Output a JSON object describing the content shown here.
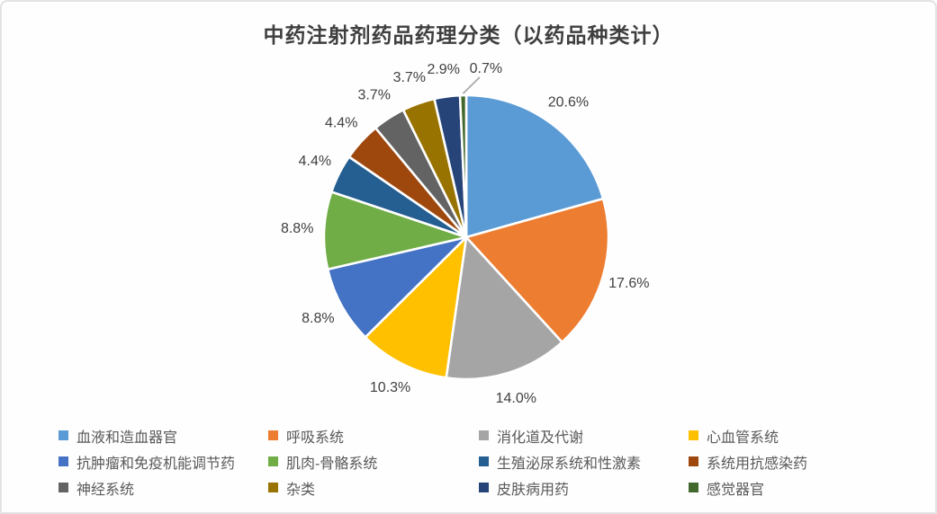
{
  "title": "中药注射剂药品药理分类（以药品种类计）",
  "chart_data": {
    "type": "pie",
    "title": "中药注射剂药品药理分类（以药品种类计）",
    "value_unit": "%",
    "start_angle_deg": 0,
    "direction": "clockwise",
    "legend_position": "bottom",
    "data_labels": "percent-outside",
    "slices": [
      {
        "label": "血液和造血器官",
        "value": 20.6,
        "display": "20.6%",
        "color": "#5B9BD5"
      },
      {
        "label": "呼吸系统",
        "value": 17.6,
        "display": "17.6%",
        "color": "#ED7D31"
      },
      {
        "label": "消化道及代谢",
        "value": 14.0,
        "display": "14.0%",
        "color": "#A5A5A5"
      },
      {
        "label": "心血管系统",
        "value": 10.3,
        "display": "10.3%",
        "color": "#FFC000"
      },
      {
        "label": "抗肿瘤和免疫机能调节药",
        "value": 8.8,
        "display": "8.8%",
        "color": "#4472C4"
      },
      {
        "label": "肌肉-骨骼系统",
        "value": 8.8,
        "display": "8.8%",
        "color": "#70AD47"
      },
      {
        "label": "生殖泌尿系统和性激素",
        "value": 4.4,
        "display": "4.4%",
        "color": "#255E91"
      },
      {
        "label": "系统用抗感染药",
        "value": 4.4,
        "display": "4.4%",
        "color": "#9E480E"
      },
      {
        "label": "神经系统",
        "value": 3.7,
        "display": "3.7%",
        "color": "#636363"
      },
      {
        "label": "杂类",
        "value": 3.7,
        "display": "3.7%",
        "color": "#997300"
      },
      {
        "label": "皮肤病用药",
        "value": 2.9,
        "display": "2.9%",
        "color": "#264478"
      },
      {
        "label": "感觉器官",
        "value": 0.7,
        "display": "0.7%",
        "color": "#43682B"
      }
    ],
    "colors": {
      "label_text": "#404040",
      "legend_text": "#595959",
      "title_text": "#3f3f3f",
      "leader_line": "#A6A6A6",
      "slice_border": "#ffffff"
    }
  }
}
